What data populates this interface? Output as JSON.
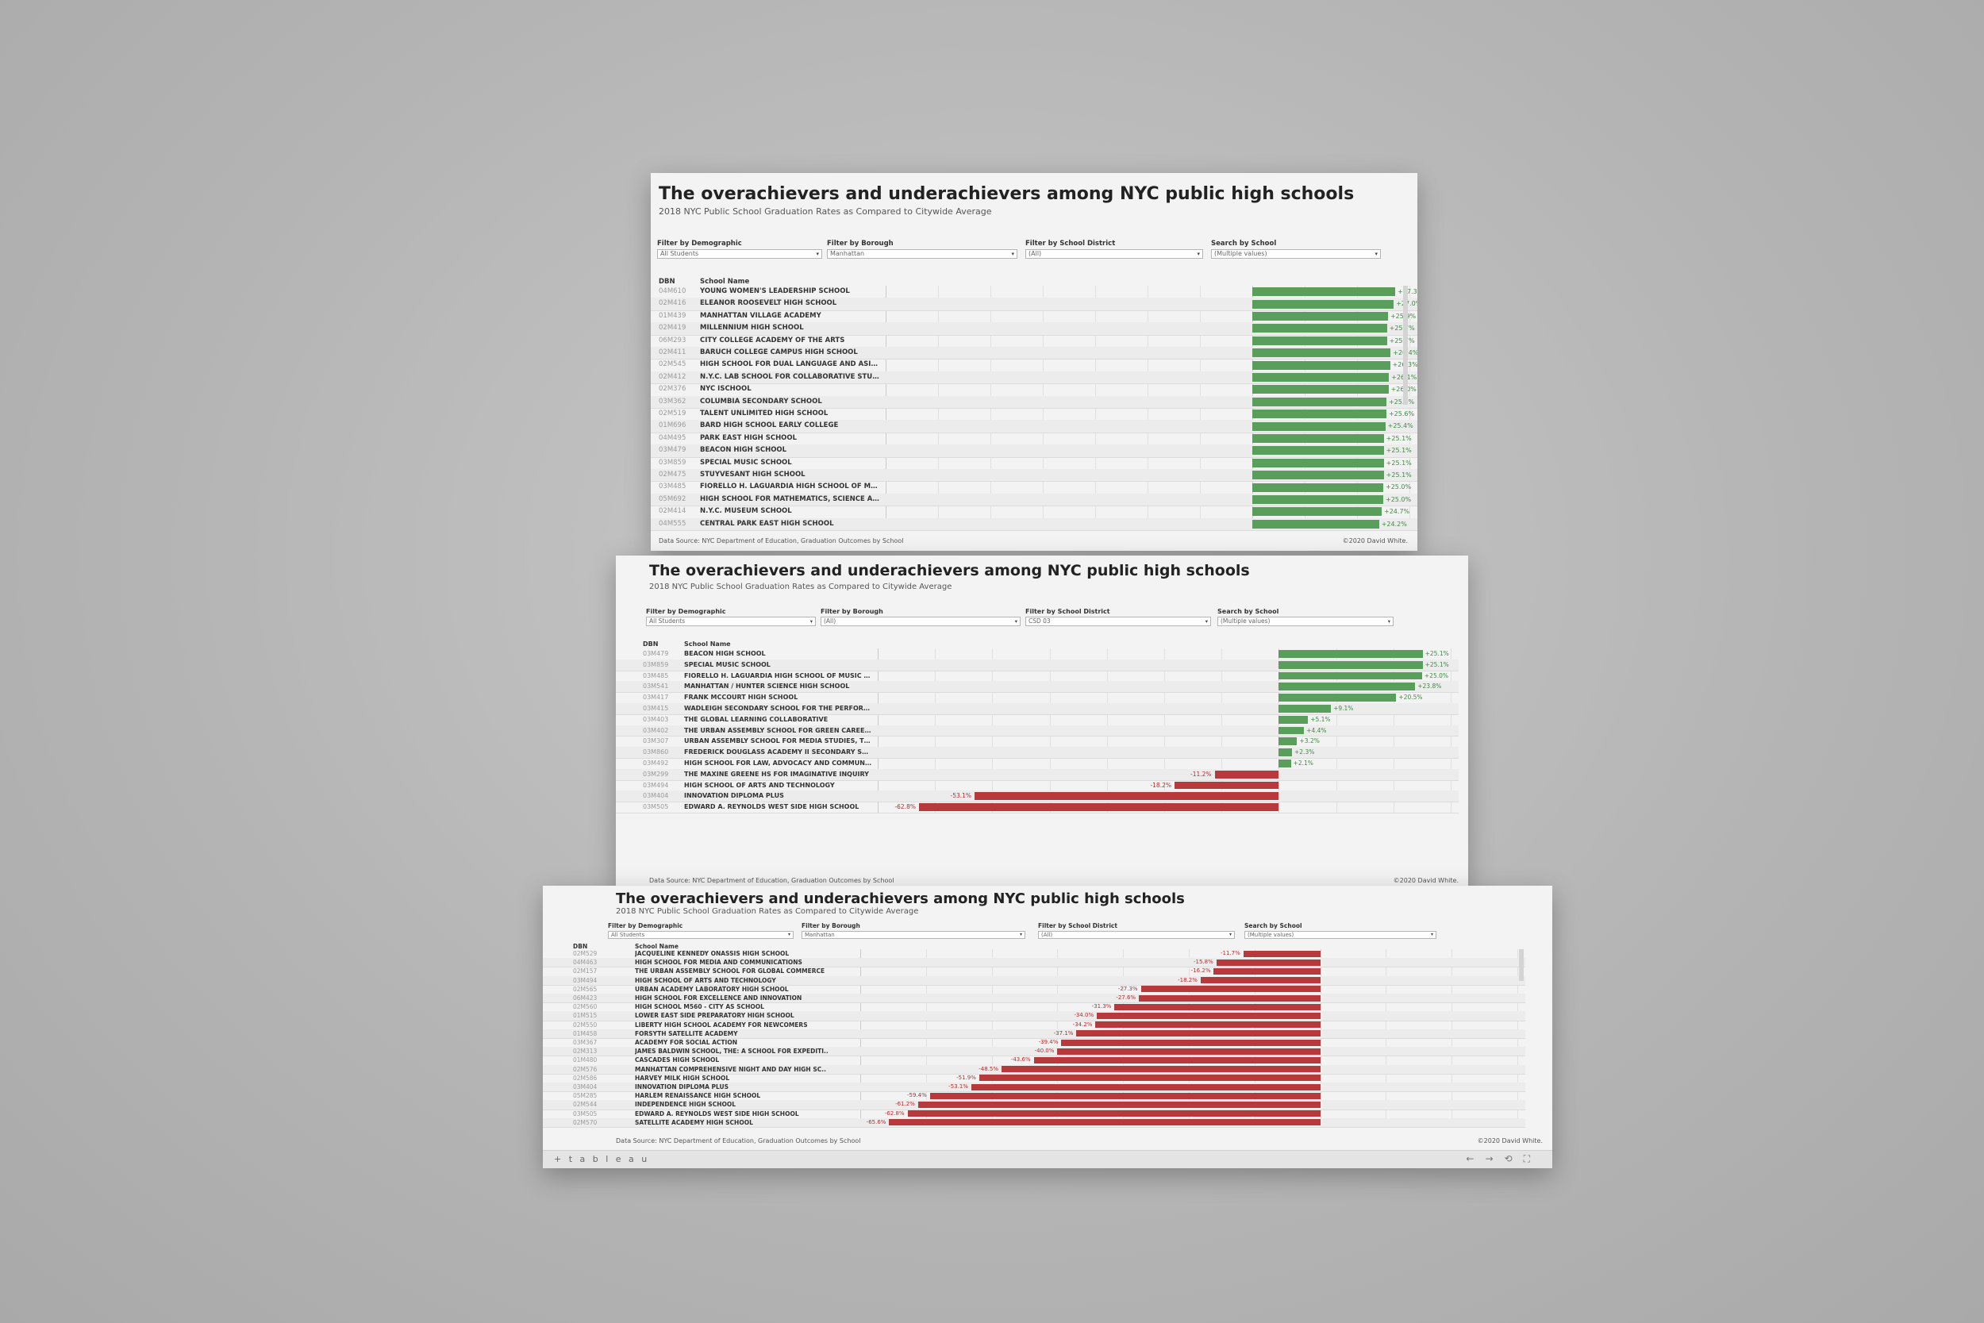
{
  "title": "The overachievers and underachievers among NYC public high schools",
  "subtitle": "2018 NYC Public School Graduation Rates as Compared to Citywide Average",
  "filter_labels": {
    "demographic": "Filter by Demographic",
    "borough": "Filter by Borough",
    "district": "Filter by School District",
    "search": "Search by School"
  },
  "columns": {
    "dbn": "DBN",
    "school": "School Name"
  },
  "footer": {
    "source": "Data Source: NYC Department of Education, Graduation Outcomes by School",
    "credit": "©2020 David White."
  },
  "tableau_logo": "+ t a b l e a u",
  "nav_icons": [
    "back-arrow-icon",
    "forward-arrow-icon",
    "revert-icon",
    "fullscreen-icon"
  ],
  "colors": {
    "positive": "#5a9e5c",
    "negative": "#b8393b"
  },
  "chart_data": [
    {
      "type": "bar",
      "filters": {
        "demographic": "All Students",
        "borough": "Manhattan",
        "district": "(All)",
        "search": "(Multiple values)"
      },
      "xlim": [
        -70,
        30
      ],
      "rows": [
        {
          "dbn": "04M610",
          "school": "YOUNG WOMEN'S LEADERSHIP SCHOOL",
          "value": 27.3,
          "label": "+27.3%"
        },
        {
          "dbn": "02M416",
          "school": "ELEANOR ROOSEVELT HIGH SCHOOL",
          "value": 27.0,
          "label": "+27.0%"
        },
        {
          "dbn": "01M439",
          "school": "MANHATTAN VILLAGE ACADEMY",
          "value": 25.9,
          "label": "+25.9%"
        },
        {
          "dbn": "02M419",
          "school": "MILLENNIUM HIGH SCHOOL",
          "value": 25.7,
          "label": "+25.7%"
        },
        {
          "dbn": "06M293",
          "school": "CITY COLLEGE ACADEMY OF THE ARTS",
          "value": 25.7,
          "label": "+25.7%"
        },
        {
          "dbn": "02M411",
          "school": "BARUCH COLLEGE CAMPUS HIGH SCHOOL",
          "value": 26.4,
          "label": "+26.4%"
        },
        {
          "dbn": "02M545",
          "school": "HIGH SCHOOL FOR DUAL LANGUAGE AND ASIAN STUDIES",
          "value": 26.3,
          "label": "+26.3%"
        },
        {
          "dbn": "02M412",
          "school": "N.Y.C. LAB SCHOOL FOR COLLABORATIVE STUDIES",
          "value": 26.1,
          "label": "+26.1%"
        },
        {
          "dbn": "02M376",
          "school": "NYC ISCHOOL",
          "value": 26.0,
          "label": "+26.0%"
        },
        {
          "dbn": "03M362",
          "school": "COLUMBIA SECONDARY SCHOOL",
          "value": 25.6,
          "label": "+25.6%"
        },
        {
          "dbn": "02M519",
          "school": "TALENT UNLIMITED HIGH SCHOOL",
          "value": 25.6,
          "label": "+25.6%"
        },
        {
          "dbn": "01M696",
          "school": "BARD HIGH SCHOOL EARLY COLLEGE",
          "value": 25.4,
          "label": "+25.4%"
        },
        {
          "dbn": "04M495",
          "school": "PARK EAST HIGH SCHOOL",
          "value": 25.1,
          "label": "+25.1%"
        },
        {
          "dbn": "03M479",
          "school": "BEACON HIGH SCHOOL",
          "value": 25.1,
          "label": "+25.1%"
        },
        {
          "dbn": "03M859",
          "school": "SPECIAL MUSIC SCHOOL",
          "value": 25.1,
          "label": "+25.1%"
        },
        {
          "dbn": "02M475",
          "school": "STUYVESANT HIGH SCHOOL",
          "value": 25.1,
          "label": "+25.1%"
        },
        {
          "dbn": "03M485",
          "school": "FIORELLO H. LAGUARDIA HIGH SCHOOL OF MUSIC & ART ..",
          "value": 25.0,
          "label": "+25.0%"
        },
        {
          "dbn": "05M692",
          "school": "HIGH SCHOOL FOR MATHEMATICS, SCIENCE AND ENGINE..",
          "value": 25.0,
          "label": "+25.0%"
        },
        {
          "dbn": "02M414",
          "school": "N.Y.C. MUSEUM SCHOOL",
          "value": 24.7,
          "label": "+24.7%"
        },
        {
          "dbn": "04M555",
          "school": "CENTRAL PARK EAST HIGH SCHOOL",
          "value": 24.2,
          "label": "+24.2%"
        }
      ]
    },
    {
      "type": "bar",
      "filters": {
        "demographic": "All Students",
        "borough": "(All)",
        "district": "CSD 03",
        "search": "(Multiple values)"
      },
      "xlim": [
        -70,
        30
      ],
      "rows": [
        {
          "dbn": "03M479",
          "school": "BEACON HIGH SCHOOL",
          "value": 25.1,
          "label": "+25.1%"
        },
        {
          "dbn": "03M859",
          "school": "SPECIAL MUSIC SCHOOL",
          "value": 25.1,
          "label": "+25.1%"
        },
        {
          "dbn": "03M485",
          "school": "FIORELLO H. LAGUARDIA HIGH SCHOOL OF MUSIC & ART ..",
          "value": 25.0,
          "label": "+25.0%"
        },
        {
          "dbn": "03M541",
          "school": "MANHATTAN / HUNTER SCIENCE HIGH SCHOOL",
          "value": 23.8,
          "label": "+23.8%"
        },
        {
          "dbn": "03M417",
          "school": "FRANK MCCOURT HIGH SCHOOL",
          "value": 20.5,
          "label": "+20.5%"
        },
        {
          "dbn": "03M415",
          "school": "WADLEIGH SECONDARY SCHOOL FOR THE PERFORMING ..",
          "value": 9.1,
          "label": "+9.1%"
        },
        {
          "dbn": "03M403",
          "school": "THE GLOBAL LEARNING COLLABORATIVE",
          "value": 5.1,
          "label": "+5.1%"
        },
        {
          "dbn": "03M402",
          "school": "THE URBAN ASSEMBLY SCHOOL FOR GREEN CAREERS",
          "value": 4.4,
          "label": "+4.4%"
        },
        {
          "dbn": "03M307",
          "school": "URBAN ASSEMBLY SCHOOL FOR MEDIA STUDIES, THE",
          "value": 3.2,
          "label": "+3.2%"
        },
        {
          "dbn": "03M860",
          "school": "FREDERICK DOUGLASS ACADEMY II SECONDARY SCHOOL",
          "value": 2.3,
          "label": "+2.3%"
        },
        {
          "dbn": "03M492",
          "school": "HIGH SCHOOL FOR LAW, ADVOCACY AND COMMUNITY JU..",
          "value": 2.1,
          "label": "+2.1%"
        },
        {
          "dbn": "03M299",
          "school": "THE MAXINE GREENE HS FOR IMAGINATIVE INQUIRY",
          "value": -11.2,
          "label": "-11.2%"
        },
        {
          "dbn": "03M494",
          "school": "HIGH SCHOOL OF ARTS AND TECHNOLOGY",
          "value": -18.2,
          "label": "-18.2%"
        },
        {
          "dbn": "03M404",
          "school": "INNOVATION DIPLOMA PLUS",
          "value": -53.1,
          "label": "-53.1%"
        },
        {
          "dbn": "03M505",
          "school": "EDWARD A. REYNOLDS WEST SIDE HIGH SCHOOL",
          "value": -62.8,
          "label": "-62.8%"
        }
      ]
    },
    {
      "type": "bar",
      "filters": {
        "demographic": "All Students",
        "borough": "Manhattan",
        "district": "(All)",
        "search": "(Multiple values)"
      },
      "xlim": [
        -70,
        30
      ],
      "rows": [
        {
          "dbn": "02M529",
          "school": "JACQUELINE KENNEDY ONASSIS HIGH SCHOOL",
          "value": -11.7,
          "label": "-11.7%"
        },
        {
          "dbn": "04M463",
          "school": "HIGH SCHOOL FOR MEDIA AND COMMUNICATIONS",
          "value": -15.8,
          "label": "-15.8%"
        },
        {
          "dbn": "02M157",
          "school": "THE URBAN ASSEMBLY SCHOOL FOR GLOBAL COMMERCE",
          "value": -16.2,
          "label": "-16.2%"
        },
        {
          "dbn": "03M494",
          "school": "HIGH SCHOOL OF ARTS AND TECHNOLOGY",
          "value": -18.2,
          "label": "-18.2%"
        },
        {
          "dbn": "02M565",
          "school": "URBAN ACADEMY LABORATORY HIGH SCHOOL",
          "value": -27.3,
          "label": "-27.3%"
        },
        {
          "dbn": "06M423",
          "school": "HIGH SCHOOL FOR EXCELLENCE AND INNOVATION",
          "value": -27.6,
          "label": "-27.6%"
        },
        {
          "dbn": "02M560",
          "school": "HIGH SCHOOL M560 - CITY AS SCHOOL",
          "value": -31.3,
          "label": "-31.3%"
        },
        {
          "dbn": "01M515",
          "school": "LOWER EAST SIDE PREPARATORY HIGH SCHOOL",
          "value": -34.0,
          "label": "-34.0%"
        },
        {
          "dbn": "02M550",
          "school": "LIBERTY HIGH SCHOOL ACADEMY FOR NEWCOMERS",
          "value": -34.2,
          "label": "-34.2%"
        },
        {
          "dbn": "01M458",
          "school": "FORSYTH SATELLITE ACADEMY",
          "value": -37.1,
          "label": "-37.1%"
        },
        {
          "dbn": "03M367",
          "school": "ACADEMY FOR SOCIAL ACTION",
          "value": -39.4,
          "label": "-39.4%"
        },
        {
          "dbn": "02M313",
          "school": "JAMES BALDWIN SCHOOL, THE: A SCHOOL FOR EXPEDITI..",
          "value": -40.0,
          "label": "-40.0%"
        },
        {
          "dbn": "01M480",
          "school": "CASCADES HIGH SCHOOL",
          "value": -43.6,
          "label": "-43.6%"
        },
        {
          "dbn": "02M576",
          "school": "MANHATTAN COMPREHENSIVE NIGHT AND DAY HIGH SC..",
          "value": -48.5,
          "label": "-48.5%"
        },
        {
          "dbn": "02M586",
          "school": "HARVEY MILK HIGH SCHOOL",
          "value": -51.9,
          "label": "-51.9%"
        },
        {
          "dbn": "03M404",
          "school": "INNOVATION DIPLOMA PLUS",
          "value": -53.1,
          "label": "-53.1%"
        },
        {
          "dbn": "05M285",
          "school": "HARLEM RENAISSANCE HIGH SCHOOL",
          "value": -59.4,
          "label": "-59.4%"
        },
        {
          "dbn": "02M544",
          "school": "INDEPENDENCE HIGH SCHOOL",
          "value": -61.2,
          "label": "-61.2%"
        },
        {
          "dbn": "03M505",
          "school": "EDWARD A. REYNOLDS WEST SIDE HIGH SCHOOL",
          "value": -62.8,
          "label": "-62.8%"
        },
        {
          "dbn": "02M570",
          "school": "SATELLITE ACADEMY HIGH SCHOOL",
          "value": -65.6,
          "label": "-65.6%"
        }
      ]
    }
  ]
}
